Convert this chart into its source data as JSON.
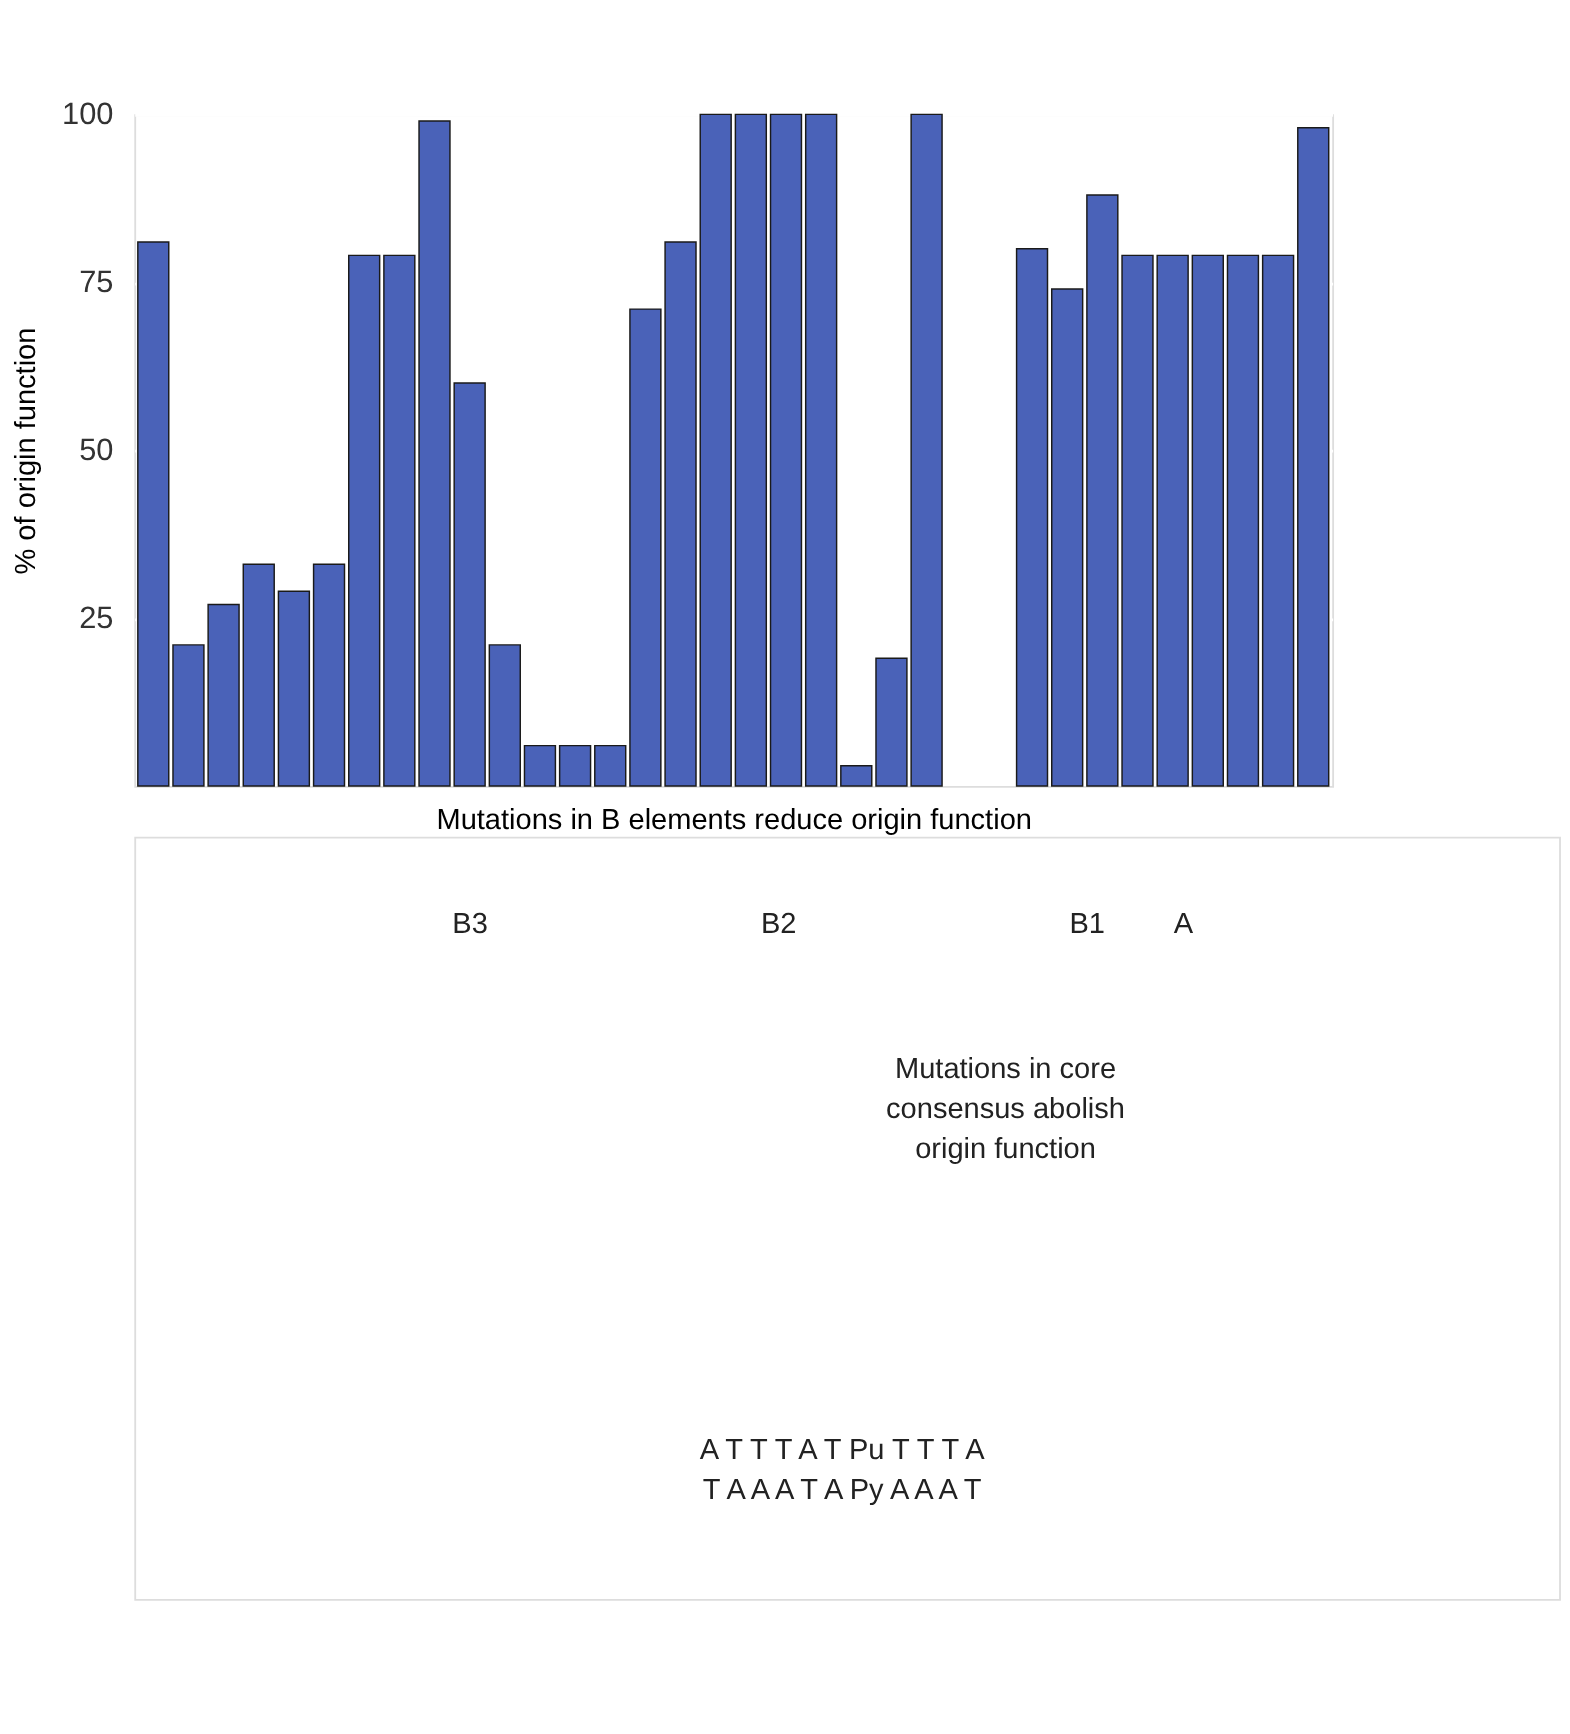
{
  "chart_data": {
    "type": "bar",
    "ylabel": "% of origin function",
    "xlabel": "Mutations in B elements reduce origin function",
    "categories": [
      null,
      null,
      null,
      null,
      null,
      null,
      null,
      null,
      null,
      null,
      null,
      null,
      null,
      null,
      null,
      null,
      null,
      null,
      null,
      null,
      null,
      null,
      null,
      null,
      null,
      null,
      null,
      null,
      null,
      null,
      null,
      null,
      null,
      null
    ],
    "values": [
      81,
      21,
      27,
      33,
      29,
      33,
      79,
      79,
      99,
      60,
      21,
      6,
      6,
      6,
      71,
      81,
      100,
      100,
      100,
      100,
      3,
      19,
      100,
      null,
      null,
      80,
      74,
      88,
      79,
      79,
      79,
      79,
      79,
      98
    ],
    "color": "#4a62b8",
    "ylim": [
      0,
      100
    ],
    "yticks": [
      25,
      50,
      75,
      100
    ],
    "grid": "y",
    "tick_labels": "y",
    "annotations": [
      "B3",
      "B2",
      "B1",
      "A",
      "Mutations in core consensus abolish origin function",
      "A  T  T  T  A  T  Pu  T  T  T  A",
      "T  A  A  A  T  A  Py  A  A  A  T"
    ]
  }
}
